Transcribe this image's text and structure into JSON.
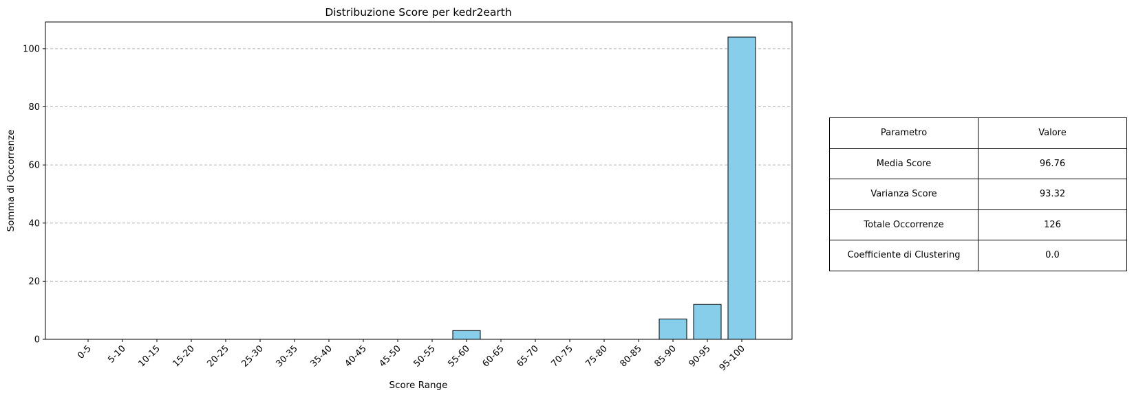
{
  "chart_data": {
    "type": "bar",
    "title": "Distribuzione Score per kedr2earth",
    "xlabel": "Score Range",
    "ylabel": "Somma di Occorrenze",
    "categories": [
      "0-5",
      "5-10",
      "10-15",
      "15-20",
      "20-25",
      "25-30",
      "30-35",
      "35-40",
      "40-45",
      "45-50",
      "50-55",
      "55-60",
      "60-65",
      "65-70",
      "70-75",
      "75-80",
      "80-85",
      "85-90",
      "90-95",
      "95-100"
    ],
    "values": [
      0,
      0,
      0,
      0,
      0,
      0,
      0,
      0,
      0,
      0,
      0,
      3,
      0,
      0,
      0,
      0,
      0,
      7,
      12,
      104
    ],
    "ylim": [
      0,
      109.2
    ],
    "yticks": [
      0,
      20,
      40,
      60,
      80,
      100
    ],
    "grid": "y-dashed",
    "bar_color": "#87ceeb",
    "bar_edge_color": "#000000"
  },
  "table": {
    "header": [
      "Parametro",
      "Valore"
    ],
    "rows": [
      [
        "Media Score",
        "96.76"
      ],
      [
        "Varianza Score",
        "93.32"
      ],
      [
        "Totale Occorrenze",
        "126"
      ],
      [
        "Coefficiente di Clustering",
        "0.0"
      ]
    ]
  }
}
